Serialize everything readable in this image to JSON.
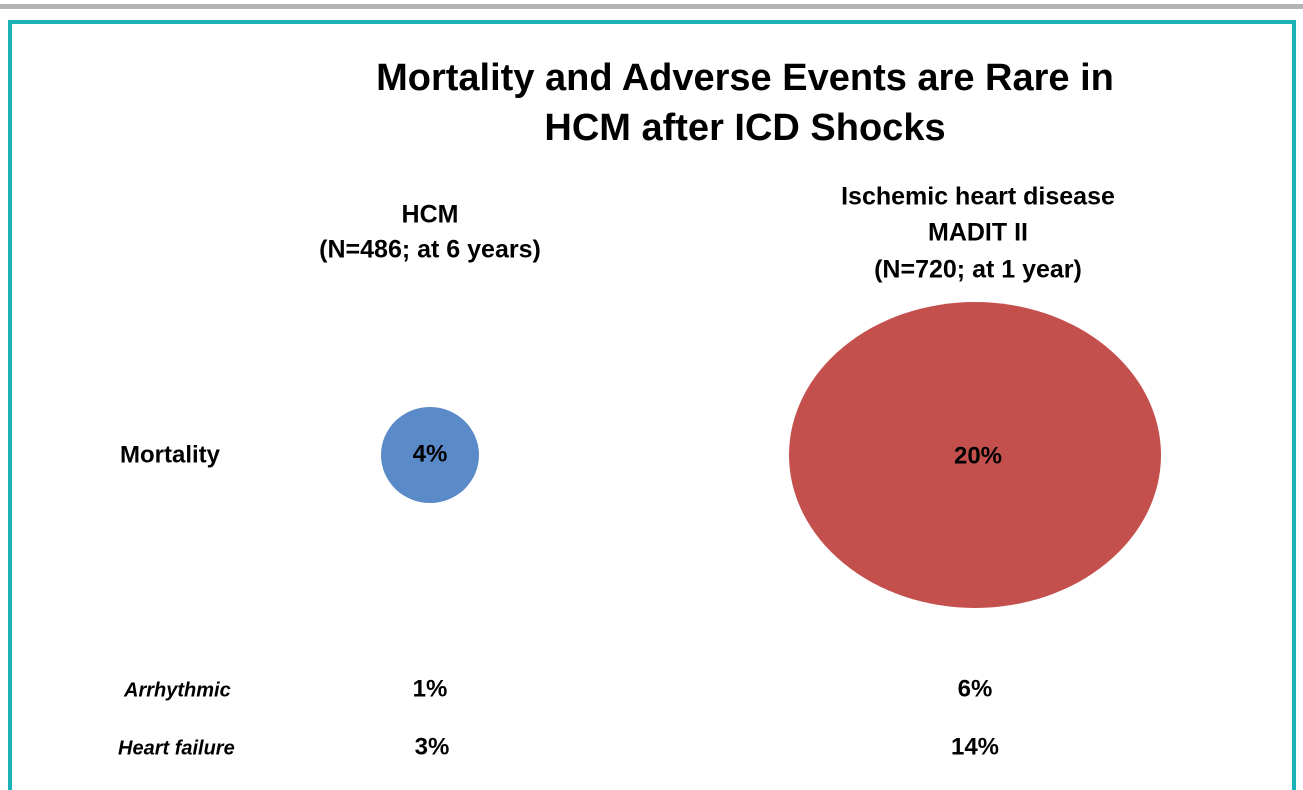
{
  "title_lines": [
    "Mortality and Adverse Events are Rare in",
    "HCM after ICD Shocks"
  ],
  "columns": [
    {
      "header_lines": [
        "HCM",
        "(N=486; at 6 years)"
      ],
      "mortality": "4%",
      "arrhythmic": "1%",
      "heart_failure": "3%"
    },
    {
      "header_lines": [
        "Ischemic heart disease",
        "MADIT II",
        "(N=720; at 1 year)"
      ],
      "mortality": "20%",
      "arrhythmic": "6%",
      "heart_failure": "14%"
    }
  ],
  "row_labels": {
    "mortality": "Mortality",
    "arrhythmic": "Arrhythmic",
    "heart_failure": "Heart failure"
  }
}
